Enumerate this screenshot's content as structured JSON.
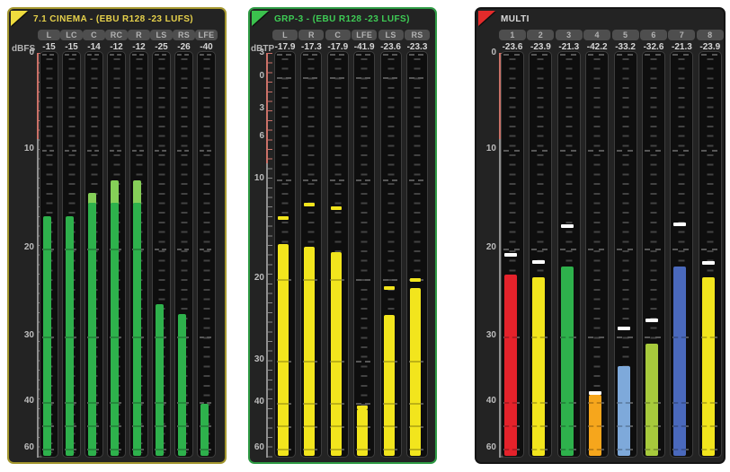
{
  "panels": [
    {
      "id": "cinema71",
      "title": "7.1 CINEMA - (EBU R128 -23 LUFS)",
      "title_color": "#e6d14b",
      "flag_color": "#efdc3e",
      "border_color": "#a4972e",
      "unit": "dBFS",
      "scale_labels": [
        {
          "text": "0",
          "db": 0
        },
        {
          "text": "10",
          "db": 10
        },
        {
          "text": "20",
          "db": 20
        },
        {
          "text": "30",
          "db": 30
        },
        {
          "text": "40",
          "db": 40
        },
        {
          "text": "60",
          "db": 60
        }
      ],
      "bar_color": "#2eb14c",
      "cap_color": "#85cf58",
      "channels": [
        {
          "label": "L",
          "value": "-15",
          "bar_db": 16.7
        },
        {
          "label": "LC",
          "value": "-15",
          "bar_db": 16.7
        },
        {
          "label": "C",
          "value": "-14",
          "bar_db": 15.4,
          "cap_db": 14.4
        },
        {
          "label": "RC",
          "value": "-12",
          "bar_db": 15.4,
          "cap_db": 13.1
        },
        {
          "label": "R",
          "value": "-12",
          "bar_db": 15.4,
          "cap_db": 13.1
        },
        {
          "label": "LS",
          "value": "-25",
          "bar_db": 26.3
        },
        {
          "label": "RS",
          "value": "-26",
          "bar_db": 27.4
        },
        {
          "label": "LFE",
          "value": "-40",
          "bar_db": 40.8
        }
      ]
    },
    {
      "id": "grp3",
      "title": "GRP-3 - (EBU R128 -23 LUFS)",
      "title_color": "#3ecc55",
      "flag_color": "#3bc14d",
      "border_color": "#2d9a43",
      "unit": "dBTP",
      "scale_labels": [
        {
          "text": "3",
          "db": -3
        },
        {
          "text": "0",
          "db": 0
        },
        {
          "text": "3",
          "db": 3
        },
        {
          "text": "6",
          "db": 6
        },
        {
          "text": "10",
          "db": 10
        },
        {
          "text": "20",
          "db": 20
        },
        {
          "text": "30",
          "db": 30
        },
        {
          "text": "40",
          "db": 40
        },
        {
          "text": "60",
          "db": 60
        }
      ],
      "bar_color": "#f2e51d",
      "peak_color": "#f2e51d",
      "channels": [
        {
          "label": "L",
          "value": "-17.9",
          "bar_db": 16.5,
          "peak_db": 13.7
        },
        {
          "label": "R",
          "value": "-17.3",
          "bar_db": 16.8,
          "peak_db": 12.3
        },
        {
          "label": "C",
          "value": "-17.9",
          "bar_db": 17.3,
          "peak_db": 12.7
        },
        {
          "label": "LFE",
          "value": "-41.9",
          "bar_db": 42.7,
          "peak_db": 41.2
        },
        {
          "label": "LS",
          "value": "-23.6",
          "bar_db": 24.4,
          "peak_db": 20.9
        },
        {
          "label": "RS",
          "value": "-23.3",
          "bar_db": 21.1,
          "peak_db": 19.9
        }
      ]
    },
    {
      "id": "multi",
      "title": "MULTI",
      "title_color": "#d9d9d9",
      "flag_color": "#e32b2b",
      "border_color": "#141414",
      "unit": null,
      "scale_labels": [
        {
          "text": "0",
          "db": 0
        },
        {
          "text": "10",
          "db": 10
        },
        {
          "text": "20",
          "db": 20
        },
        {
          "text": "30",
          "db": 30
        },
        {
          "text": "40",
          "db": 40
        },
        {
          "text": "60",
          "db": 60
        }
      ],
      "peak_color": "#ffffff",
      "channels": [
        {
          "label": "1",
          "value": "-23.6",
          "color": "#e4222b",
          "bar_db": 23.0,
          "peak_db": 20.5
        },
        {
          "label": "2",
          "value": "-23.9",
          "color": "#f2e51d",
          "bar_db": 23.3,
          "peak_db": 21.3
        },
        {
          "label": "3",
          "value": "-21.3",
          "color": "#2eb14c",
          "bar_db": 22.0,
          "peak_db": 17.5
        },
        {
          "label": "4",
          "value": "-42.2",
          "color": "#f6a61c",
          "bar_db": 38.9,
          "peak_db": 38.4
        },
        {
          "label": "5",
          "value": "-33.2",
          "color": "#7ea9da",
          "bar_db": 34.5,
          "peak_db": 28.9
        },
        {
          "label": "6",
          "value": "-32.6",
          "color": "#a7ca3c",
          "bar_db": 31.1,
          "peak_db": 28.0
        },
        {
          "label": "7",
          "value": "-21.3",
          "color": "#4a69bc",
          "bar_db": 22.0,
          "peak_db": 17.4
        },
        {
          "label": "8",
          "value": "-23.9",
          "color": "#f2e51d",
          "bar_db": 23.3,
          "peak_db": 21.4
        }
      ]
    }
  ]
}
